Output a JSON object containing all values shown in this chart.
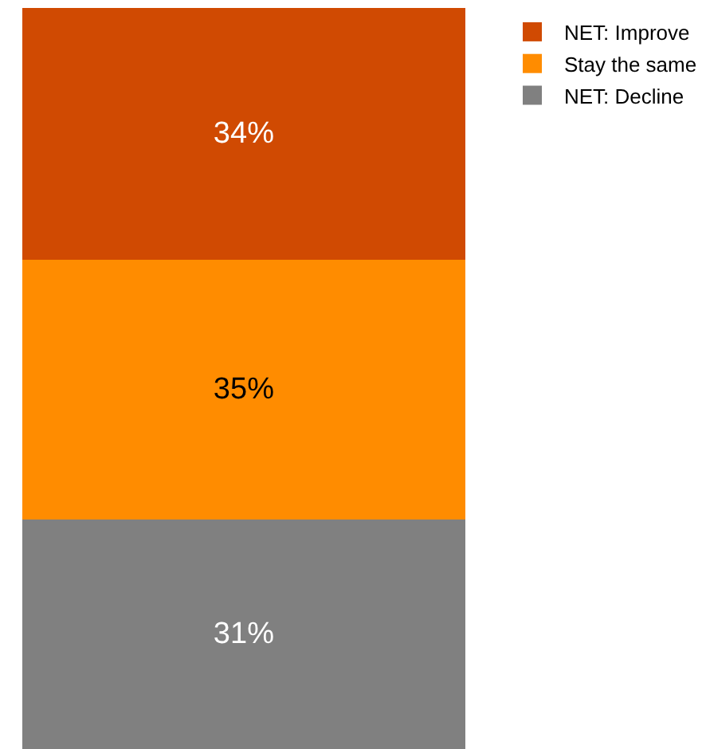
{
  "chart_data": {
    "type": "bar",
    "stacked": true,
    "categories": [
      null
    ],
    "legend": "top right",
    "series": [
      {
        "name": "NET: Decline",
        "color": "#808080",
        "values": [
          31
        ],
        "value_labels": [
          "31%"
        ]
      },
      {
        "name": "Stay the same",
        "color": "#ff8c00",
        "values": [
          35
        ],
        "value_labels": [
          "35%"
        ]
      },
      {
        "name": "NET: Improve",
        "color": "#d04a02",
        "values": [
          34
        ],
        "value_labels": [
          "34%"
        ]
      }
    ]
  }
}
